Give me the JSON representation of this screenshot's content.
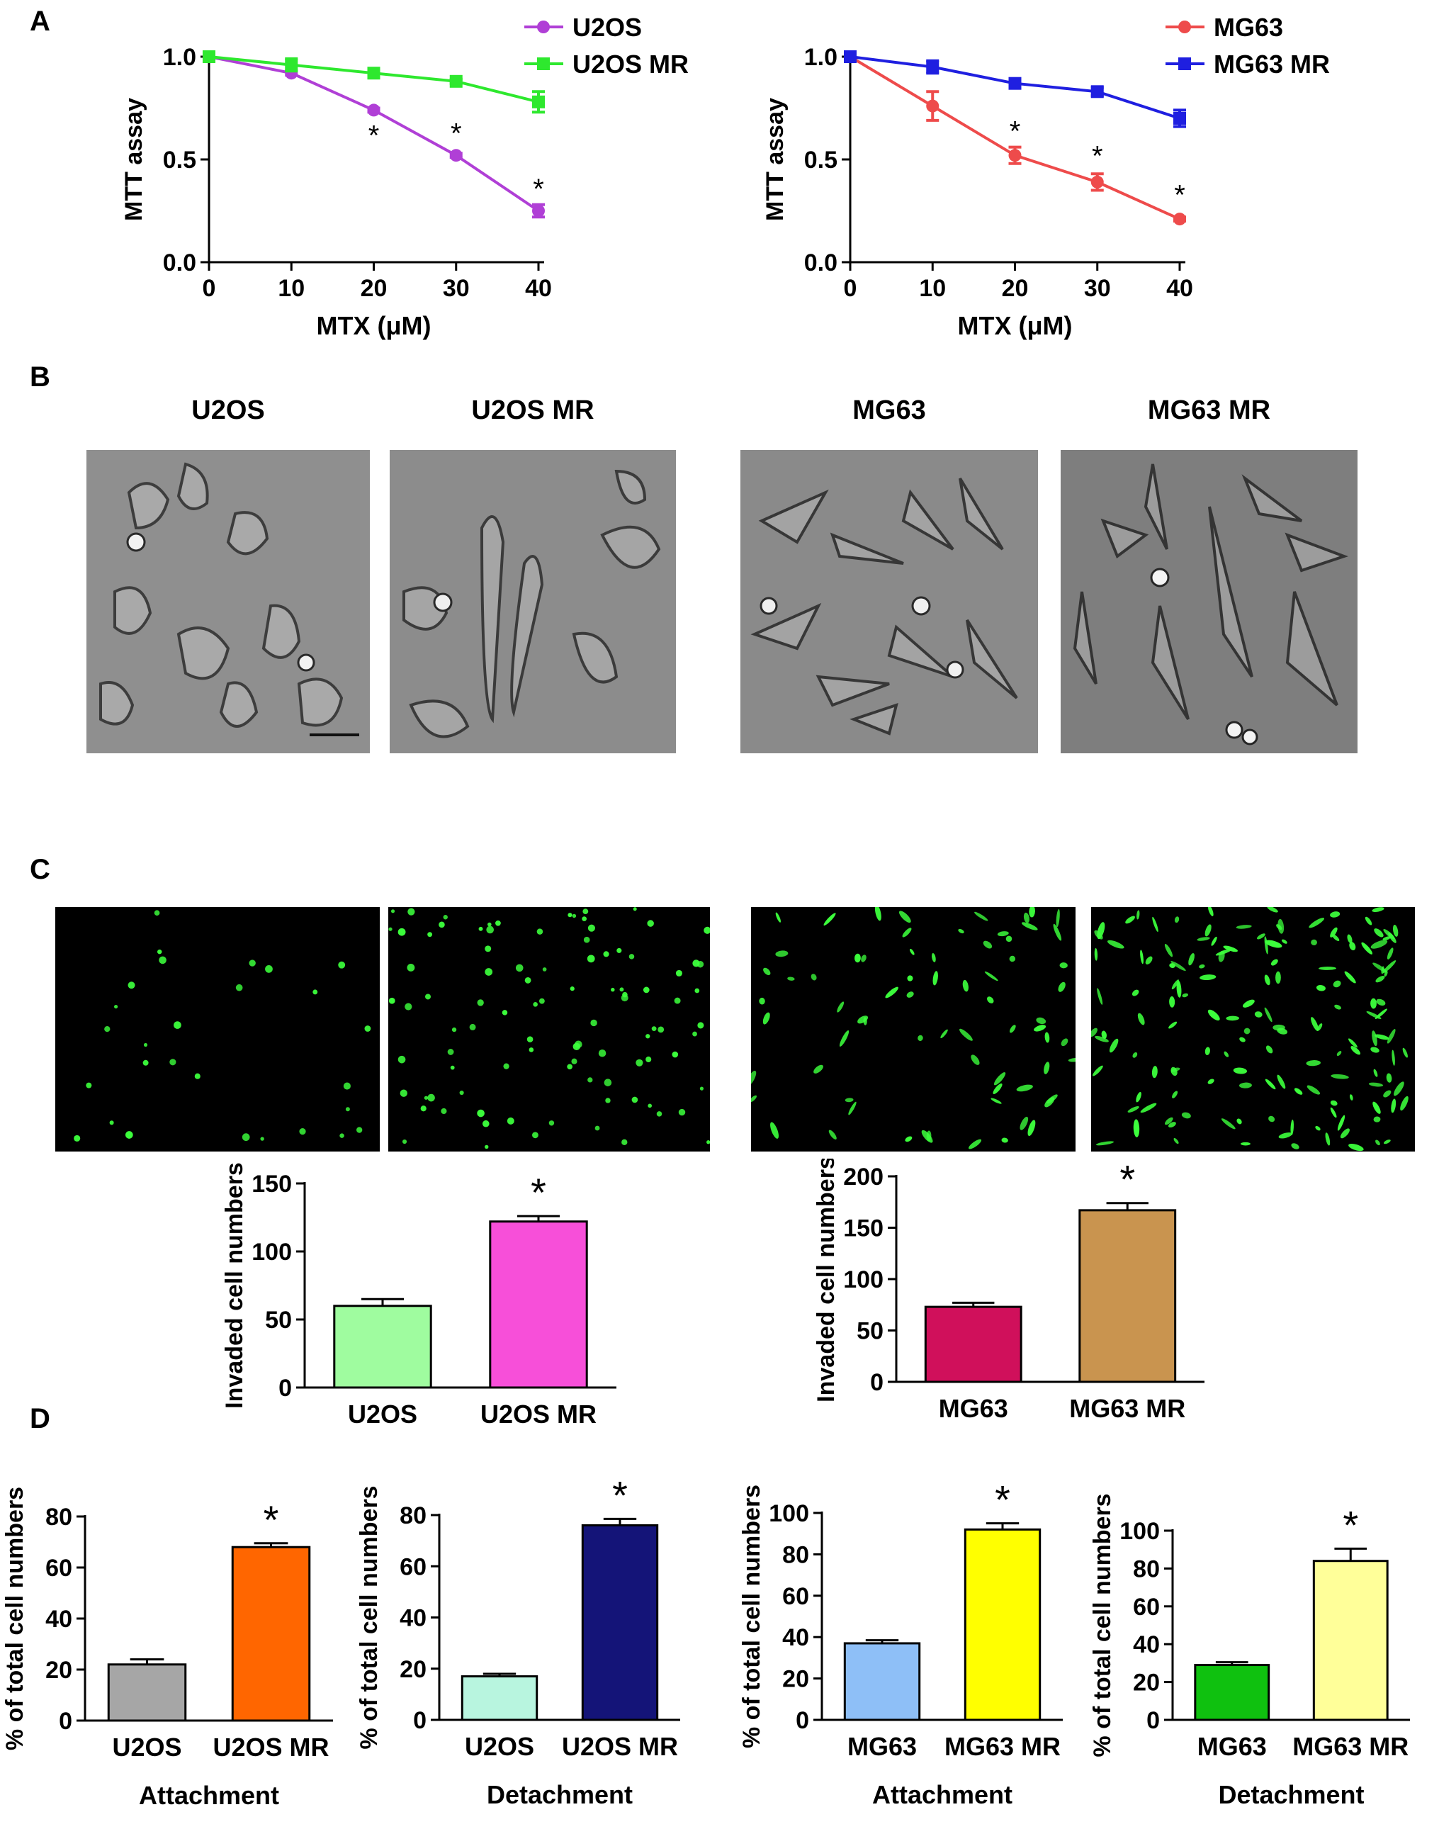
{
  "panel_labels": {
    "a": "A",
    "b": "B",
    "c": "C",
    "d": "D"
  },
  "panel_b_titles": [
    "U2OS",
    "U2OS  MR",
    "MG63",
    "MG63  MR"
  ],
  "colors": {
    "u2os": "#b03fd6",
    "u2os_mr": "#2ee82e",
    "mg63": "#ee4b4b",
    "mg63_mr": "#1f1fe0",
    "micro_bg": "#888888",
    "fluor_bg": "#000000",
    "fluor_cell": "#3cff3c"
  },
  "chart_data": [
    {
      "id": "mtt_u2os",
      "type": "line",
      "xlabel": "MTX (μM)",
      "ylabel": "MTT assay",
      "x": [
        0,
        10,
        20,
        30,
        40
      ],
      "xlim": [
        0,
        40
      ],
      "ylim": [
        0,
        1.0
      ],
      "xticks": [
        "0",
        "10",
        "20",
        "30",
        "40"
      ],
      "yticks": [
        "0.0",
        "0.5",
        "1.0"
      ],
      "legend_position": "top-right",
      "series": [
        {
          "name": "U2OS",
          "color": "#b03fd6",
          "marker": "circle",
          "values": [
            1.0,
            0.92,
            0.74,
            0.52,
            0.25
          ],
          "errors": [
            0.01,
            0.01,
            0.01,
            0.01,
            0.03
          ]
        },
        {
          "name": "U2OS  MR",
          "color": "#2ee82e",
          "marker": "square",
          "values": [
            1.0,
            0.96,
            0.92,
            0.88,
            0.78
          ],
          "errors": [
            0.01,
            0.03,
            0.01,
            0.01,
            0.05
          ]
        }
      ],
      "annotations": [
        {
          "x": 20,
          "y": 0.64,
          "text": "*"
        },
        {
          "x": 30,
          "y": 0.65,
          "text": "*"
        },
        {
          "x": 40,
          "y": 0.38,
          "text": "*"
        }
      ]
    },
    {
      "id": "mtt_mg63",
      "type": "line",
      "xlabel": "MTX (μM)",
      "ylabel": "MTT assay",
      "x": [
        0,
        10,
        20,
        30,
        40
      ],
      "xlim": [
        0,
        40
      ],
      "ylim": [
        0,
        1.0
      ],
      "xticks": [
        "0",
        "10",
        "20",
        "30",
        "40"
      ],
      "yticks": [
        "0.0",
        "0.5",
        "1.0"
      ],
      "legend_position": "top-right",
      "series": [
        {
          "name": "MG63",
          "color": "#ee4b4b",
          "marker": "circle",
          "values": [
            1.0,
            0.76,
            0.52,
            0.39,
            0.21
          ],
          "errors": [
            0.01,
            0.07,
            0.04,
            0.04,
            0.01
          ]
        },
        {
          "name": "MG63  MR",
          "color": "#1f1fe0",
          "marker": "square",
          "values": [
            1.0,
            0.95,
            0.87,
            0.83,
            0.7
          ],
          "errors": [
            0.01,
            0.03,
            0.01,
            0.02,
            0.04
          ]
        }
      ],
      "annotations": [
        {
          "x": 20,
          "y": 0.66,
          "text": "*"
        },
        {
          "x": 30,
          "y": 0.54,
          "text": "*"
        },
        {
          "x": 40,
          "y": 0.35,
          "text": "*"
        }
      ]
    },
    {
      "id": "invasion_u2os",
      "type": "bar",
      "ylabel": "Invaded cell numbers",
      "ylim": [
        0,
        150
      ],
      "yticks": [
        "0",
        "50",
        "100",
        "150"
      ],
      "categories": [
        "U2OS",
        "U2OS  MR"
      ],
      "values": [
        60,
        122
      ],
      "errors": [
        5,
        4
      ],
      "colors": [
        "#9ffc9f",
        "#f74fd9"
      ],
      "annotations": [
        {
          "bar": 1,
          "text": "*"
        }
      ]
    },
    {
      "id": "invasion_mg63",
      "type": "bar",
      "ylabel": "Invaded cell numbers",
      "ylim": [
        0,
        200
      ],
      "yticks": [
        "0",
        "50",
        "100",
        "150",
        "200"
      ],
      "categories": [
        "MG63",
        "MG63  MR"
      ],
      "values": [
        73,
        167
      ],
      "errors": [
        4,
        7
      ],
      "colors": [
        "#d0105b",
        "#c9944f"
      ],
      "annotations": [
        {
          "bar": 1,
          "text": "*"
        }
      ]
    },
    {
      "id": "attach_u2os",
      "type": "bar",
      "ylabel": "% of total cell numbers",
      "xlabel": "Attachment",
      "ylim": [
        0,
        80
      ],
      "yticks": [
        "0",
        "20",
        "40",
        "60",
        "80"
      ],
      "categories": [
        "U2OS",
        "U2OS  MR"
      ],
      "values": [
        22,
        68
      ],
      "errors": [
        2,
        1.5
      ],
      "colors": [
        "#a6a6a6",
        "#ff6600"
      ],
      "annotations": [
        {
          "bar": 1,
          "text": "*"
        }
      ]
    },
    {
      "id": "detach_u2os",
      "type": "bar",
      "ylabel": "% of total cell numbers",
      "xlabel": "Detachment",
      "ylim": [
        0,
        80
      ],
      "yticks": [
        "0",
        "20",
        "40",
        "60",
        "80"
      ],
      "categories": [
        "U2OS",
        "U2OS  MR"
      ],
      "values": [
        17,
        76
      ],
      "errors": [
        1,
        2.5
      ],
      "colors": [
        "#b8f5df",
        "#141478"
      ],
      "annotations": [
        {
          "bar": 1,
          "text": "*"
        }
      ]
    },
    {
      "id": "attach_mg63",
      "type": "bar",
      "ylabel": "% of total cell numbers",
      "xlabel": "Attachment",
      "ylim": [
        0,
        100
      ],
      "yticks": [
        "0",
        "20",
        "40",
        "60",
        "80",
        "100"
      ],
      "categories": [
        "MG63",
        "MG63  MR"
      ],
      "values": [
        37,
        92
      ],
      "errors": [
        1.5,
        3
      ],
      "colors": [
        "#8ebff7",
        "#ffff00"
      ],
      "annotations": [
        {
          "bar": 1,
          "text": "*"
        }
      ]
    },
    {
      "id": "detach_mg63",
      "type": "bar",
      "ylabel": "% of total cell numbers",
      "xlabel": "Detachment",
      "ylim": [
        0,
        100
      ],
      "yticks": [
        "0",
        "20",
        "40",
        "60",
        "80",
        "100"
      ],
      "categories": [
        "MG63",
        "MG63  MR"
      ],
      "values": [
        29,
        84
      ],
      "errors": [
        1.5,
        6.5
      ],
      "colors": [
        "#0fc10f",
        "#ffff99"
      ],
      "annotations": [
        {
          "bar": 1,
          "text": "*"
        }
      ]
    }
  ]
}
